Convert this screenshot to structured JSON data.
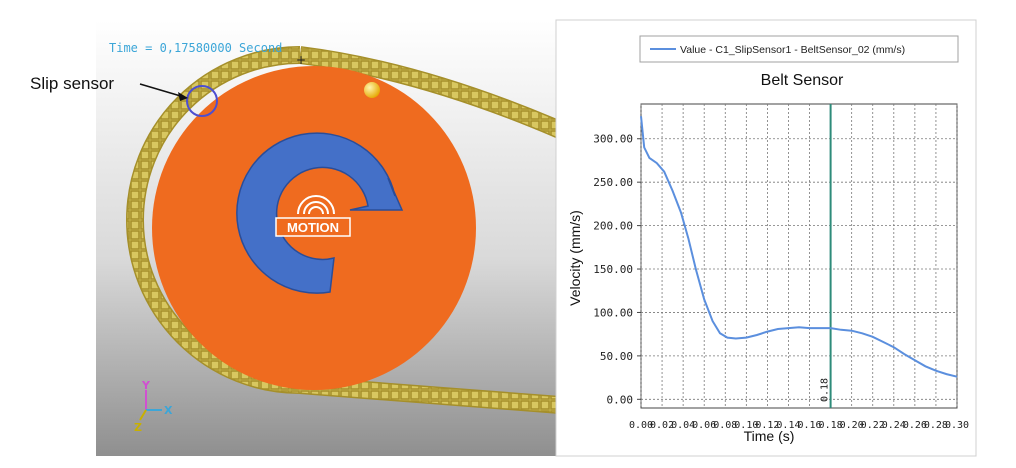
{
  "annotation": {
    "label": "Slip sensor"
  },
  "simulation": {
    "time_readout": "Time = 0,17580000 Second",
    "logo_text": "MOTION",
    "triad_labels": {
      "y": "Y",
      "z": "Z",
      "x": "X"
    },
    "colors": {
      "disk": "#ef6b1f",
      "belt": "#b8a33a",
      "arrow": "#4470c8",
      "sensor": "#4d4fd0",
      "ball": "#f0b90f"
    }
  },
  "chart_data": {
    "type": "line",
    "title": "Belt Sensor",
    "xlabel": "Time (s)",
    "ylabel": "Velocity (mm/s)",
    "xlim": [
      0.0,
      0.3
    ],
    "ylim": [
      -10,
      340
    ],
    "yticks": [
      0,
      50,
      100,
      150,
      200,
      250,
      300
    ],
    "ytick_labels": [
      "0.00",
      "50.00",
      "100.00",
      "150.00",
      "200.00",
      "250.00",
      "300.00"
    ],
    "xticks": [
      0.0,
      0.02,
      0.04,
      0.06,
      0.08,
      0.1,
      0.12,
      0.14,
      0.16,
      0.18,
      0.2,
      0.22,
      0.24,
      0.26,
      0.28,
      0.3
    ],
    "xtick_labels": [
      "0.00",
      "0.02",
      "0.04",
      "0.06",
      "0.08",
      "0.10",
      "0.12",
      "0.14",
      "0.16",
      "0.18",
      "0.20",
      "0.22",
      "0.24",
      "0.26",
      "0.28",
      "0.30"
    ],
    "grid": true,
    "legend_position": "top",
    "marker": {
      "x": 0.18,
      "label": "0.18",
      "color": "#2e8b7a"
    },
    "series": [
      {
        "name": "Value - C1_SlipSensor1 - BeltSensor_02 (mm/s)",
        "color": "#5b8fde",
        "x": [
          0.0,
          0.003,
          0.008,
          0.015,
          0.022,
          0.03,
          0.038,
          0.045,
          0.052,
          0.06,
          0.068,
          0.075,
          0.082,
          0.09,
          0.1,
          0.11,
          0.12,
          0.13,
          0.14,
          0.15,
          0.16,
          0.17,
          0.18,
          0.19,
          0.2,
          0.21,
          0.22,
          0.23,
          0.24,
          0.25,
          0.26,
          0.27,
          0.28,
          0.29,
          0.3
        ],
        "y": [
          326,
          290,
          278,
          272,
          262,
          240,
          215,
          185,
          150,
          115,
          90,
          76,
          71,
          70,
          71,
          74,
          78,
          81,
          82,
          83,
          82,
          82,
          82,
          80,
          79,
          76,
          72,
          66,
          60,
          52,
          45,
          38,
          33,
          29,
          26
        ]
      }
    ]
  }
}
